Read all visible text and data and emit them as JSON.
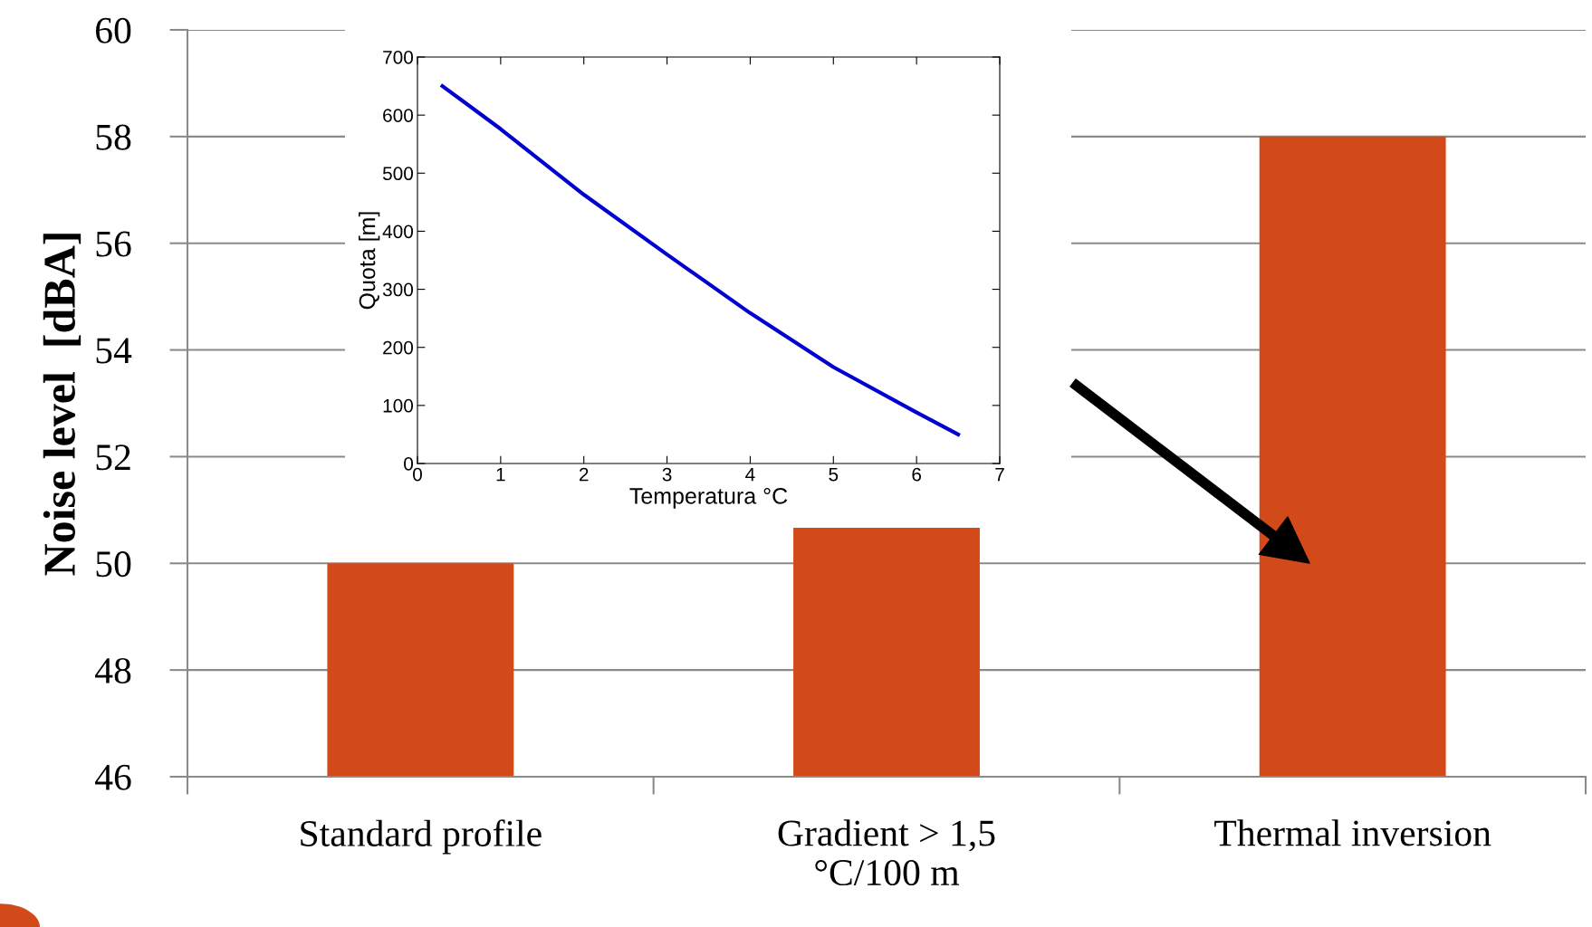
{
  "chart_data": [
    {
      "type": "bar",
      "ylabel": "Noise level  [dBA]",
      "categories": [
        "Standard profile",
        "Gradient > 1,5\n°C/100 m",
        "Thermal inversion"
      ],
      "values": [
        50,
        50.7,
        58
      ],
      "color": "#d24a1a",
      "ylim": [
        46,
        60
      ],
      "yticks": [
        46,
        48,
        50,
        52,
        54,
        56,
        58,
        60
      ],
      "grid": "y"
    },
    {
      "type": "line",
      "xlabel": "Temperatura °C",
      "ylabel": "Quota [m]",
      "series": [
        {
          "color": "#0000d0",
          "x": [
            0.3,
            1,
            2,
            3,
            4,
            5,
            6,
            6.5
          ],
          "values": [
            650,
            576,
            463,
            360,
            259,
            166,
            88,
            50
          ]
        }
      ],
      "xlim": [
        0,
        7
      ],
      "xticks": [
        0,
        1,
        2,
        3,
        4,
        5,
        6,
        7
      ],
      "ylim": [
        0,
        700
      ],
      "yticks": [
        0,
        100,
        200,
        300,
        400,
        500,
        600,
        700
      ],
      "line_style": "solid"
    }
  ]
}
